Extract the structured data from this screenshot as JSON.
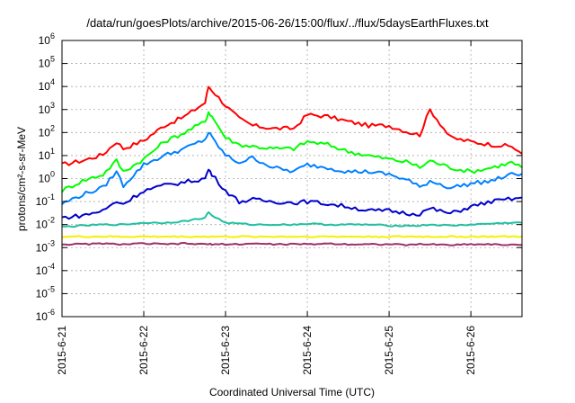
{
  "chart_data": {
    "type": "line",
    "title": "/data/run/goesPlots/archive/2015-06-26/15:00/flux/../flux/5daysEarthFluxes.txt",
    "xlabel": "Coordinated Universal Time (UTC)",
    "ylabel": "protons/cm²-s-sr-MeV",
    "yscale": "log",
    "ylim": [
      1e-06,
      1000000.0
    ],
    "xlim": [
      "2015-06-21",
      "2015-06-26 15:00"
    ],
    "grid": true,
    "y_ticks": [
      {
        "value": 1e-06,
        "base": "10",
        "exp": "-6"
      },
      {
        "value": 1e-05,
        "base": "10",
        "exp": "-5"
      },
      {
        "value": 0.0001,
        "base": "10",
        "exp": "-4"
      },
      {
        "value": 0.001,
        "base": "10",
        "exp": "-3"
      },
      {
        "value": 0.01,
        "base": "10",
        "exp": "-2"
      },
      {
        "value": 0.1,
        "base": "10",
        "exp": "-1"
      },
      {
        "value": 1,
        "base": "10",
        "exp": "0"
      },
      {
        "value": 10.0,
        "base": "10",
        "exp": "1"
      },
      {
        "value": 100.0,
        "base": "10",
        "exp": "2"
      },
      {
        "value": 1000.0,
        "base": "10",
        "exp": "3"
      },
      {
        "value": 10000.0,
        "base": "10",
        "exp": "4"
      },
      {
        "value": 100000.0,
        "base": "10",
        "exp": "5"
      },
      {
        "value": 1000000.0,
        "base": "10",
        "exp": "6"
      }
    ],
    "x_ticks": [
      "2015-6-21",
      "2015-6-22",
      "2015-6-23",
      "2015-6-24",
      "2015-6-25",
      "2015-6-26"
    ],
    "x": [
      "2015-06-21 00:00",
      "2015-06-21 06:00",
      "2015-06-21 12:00",
      "2015-06-21 16:00",
      "2015-06-21 18:00",
      "2015-06-22 00:00",
      "2015-06-22 06:00",
      "2015-06-22 12:00",
      "2015-06-22 18:00",
      "2015-06-22 19:00",
      "2015-06-22 20:00",
      "2015-06-23 00:00",
      "2015-06-23 04:00",
      "2015-06-23 08:00",
      "2015-06-23 14:00",
      "2015-06-23 20:00",
      "2015-06-24 00:00",
      "2015-06-24 06:00",
      "2015-06-24 12:00",
      "2015-06-24 18:00",
      "2015-06-25 00:00",
      "2015-06-25 06:00",
      "2015-06-25 09:00",
      "2015-06-25 12:00",
      "2015-06-25 18:00",
      "2015-06-26 00:00",
      "2015-06-26 06:00",
      "2015-06-26 12:00",
      "2015-06-26 15:00"
    ],
    "series": [
      {
        "color": "#ff0000",
        "values": [
          4,
          6,
          11,
          40,
          20,
          45,
          200,
          500,
          2000,
          10000,
          7000,
          1500,
          400,
          200,
          150,
          150,
          600,
          500,
          300,
          200,
          200,
          100,
          80,
          1000,
          60,
          40,
          30,
          25,
          12
        ]
      },
      {
        "color": "#00ff00",
        "values": [
          0.3,
          0.8,
          1.5,
          6,
          2,
          7,
          40,
          100,
          300,
          800,
          500,
          60,
          30,
          25,
          20,
          20,
          40,
          30,
          15,
          10,
          7,
          5,
          3,
          6,
          3,
          2,
          3,
          5,
          3
        ]
      },
      {
        "color": "#0080ff",
        "values": [
          0.08,
          0.2,
          0.4,
          2,
          0.5,
          4,
          10,
          20,
          50,
          100,
          60,
          10,
          5,
          8,
          3,
          2,
          4,
          3,
          2,
          2,
          1.5,
          0.8,
          0.4,
          0.8,
          0.4,
          0.6,
          0.8,
          1.5,
          1.6
        ]
      },
      {
        "color": "#0000cc",
        "values": [
          0.02,
          0.025,
          0.04,
          0.1,
          0.08,
          0.3,
          0.5,
          0.7,
          1,
          2.5,
          1.5,
          0.3,
          0.1,
          0.12,
          0.1,
          0.09,
          0.1,
          0.08,
          0.06,
          0.04,
          0.04,
          0.03,
          0.03,
          0.05,
          0.03,
          0.06,
          0.1,
          0.13,
          0.15
        ]
      },
      {
        "color": "#20c0a0",
        "values": [
          0.008,
          0.009,
          0.01,
          0.01,
          0.01,
          0.012,
          0.012,
          0.014,
          0.02,
          0.035,
          0.025,
          0.012,
          0.011,
          0.01,
          0.01,
          0.01,
          0.011,
          0.01,
          0.01,
          0.01,
          0.009,
          0.009,
          0.009,
          0.01,
          0.009,
          0.01,
          0.011,
          0.012,
          0.012
        ]
      },
      {
        "color": "#f5f000",
        "values": [
          0.003,
          0.003,
          0.003,
          0.003,
          0.003,
          0.003,
          0.003,
          0.003,
          0.003,
          0.003,
          0.003,
          0.003,
          0.003,
          0.003,
          0.003,
          0.003,
          0.003,
          0.003,
          0.003,
          0.003,
          0.003,
          0.003,
          0.003,
          0.003,
          0.003,
          0.003,
          0.003,
          0.003,
          0.003
        ]
      },
      {
        "color": "#a0306a",
        "values": [
          0.0014,
          0.0014,
          0.0015,
          0.0014,
          0.0014,
          0.0015,
          0.0014,
          0.0015,
          0.0014,
          0.0014,
          0.0014,
          0.0014,
          0.0014,
          0.0015,
          0.0014,
          0.0014,
          0.0014,
          0.0015,
          0.0014,
          0.0014,
          0.0014,
          0.0013,
          0.0014,
          0.0014,
          0.0013,
          0.0014,
          0.0014,
          0.0013,
          0.0013
        ]
      }
    ]
  }
}
